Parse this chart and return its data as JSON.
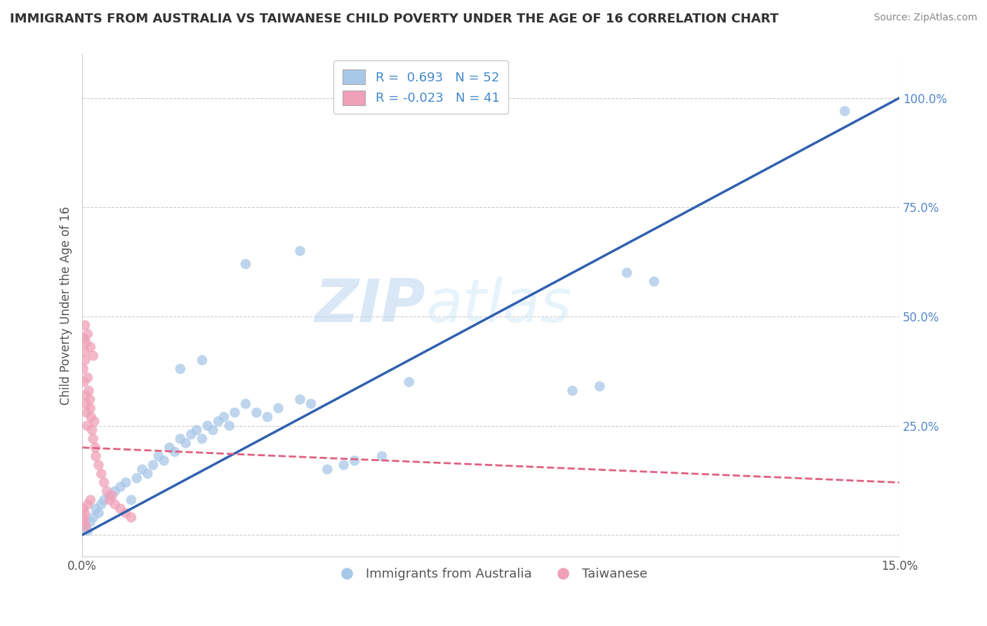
{
  "title": "IMMIGRANTS FROM AUSTRALIA VS TAIWANESE CHILD POVERTY UNDER THE AGE OF 16 CORRELATION CHART",
  "source": "Source: ZipAtlas.com",
  "ylabel": "Child Poverty Under the Age of 16",
  "y_ticks": [
    0.0,
    0.25,
    0.5,
    0.75,
    1.0
  ],
  "y_tick_labels": [
    "",
    "25.0%",
    "50.0%",
    "75.0%",
    "100.0%"
  ],
  "x_lim": [
    0.0,
    0.15
  ],
  "y_lim": [
    -0.05,
    1.1
  ],
  "r_blue": 0.693,
  "n_blue": 52,
  "r_pink": -0.023,
  "n_pink": 41,
  "legend_label_blue": "Immigrants from Australia",
  "legend_label_pink": "Taiwanese",
  "watermark_part1": "ZIP",
  "watermark_part2": "atlas",
  "blue_color": "#a8c8e8",
  "blue_line_color": "#3060b0",
  "pink_color": "#f0a0b8",
  "pink_line_color": "#e06080",
  "blue_scatter": [
    [
      0.0005,
      0.02
    ],
    [
      0.001,
      0.01
    ],
    [
      0.0015,
      0.03
    ],
    [
      0.002,
      0.04
    ],
    [
      0.0025,
      0.06
    ],
    [
      0.003,
      0.05
    ],
    [
      0.0035,
      0.07
    ],
    [
      0.004,
      0.08
    ],
    [
      0.005,
      0.09
    ],
    [
      0.006,
      0.1
    ],
    [
      0.007,
      0.11
    ],
    [
      0.008,
      0.12
    ],
    [
      0.009,
      0.08
    ],
    [
      0.01,
      0.13
    ],
    [
      0.011,
      0.15
    ],
    [
      0.012,
      0.14
    ],
    [
      0.013,
      0.16
    ],
    [
      0.014,
      0.18
    ],
    [
      0.015,
      0.17
    ],
    [
      0.016,
      0.2
    ],
    [
      0.017,
      0.19
    ],
    [
      0.018,
      0.22
    ],
    [
      0.019,
      0.21
    ],
    [
      0.02,
      0.23
    ],
    [
      0.021,
      0.24
    ],
    [
      0.022,
      0.22
    ],
    [
      0.023,
      0.25
    ],
    [
      0.024,
      0.24
    ],
    [
      0.025,
      0.26
    ],
    [
      0.026,
      0.27
    ],
    [
      0.027,
      0.25
    ],
    [
      0.028,
      0.28
    ],
    [
      0.03,
      0.3
    ],
    [
      0.032,
      0.28
    ],
    [
      0.034,
      0.27
    ],
    [
      0.036,
      0.29
    ],
    [
      0.04,
      0.31
    ],
    [
      0.042,
      0.3
    ],
    [
      0.045,
      0.15
    ],
    [
      0.048,
      0.16
    ],
    [
      0.05,
      0.17
    ],
    [
      0.055,
      0.18
    ],
    [
      0.06,
      0.35
    ],
    [
      0.03,
      0.62
    ],
    [
      0.04,
      0.65
    ],
    [
      0.09,
      0.33
    ],
    [
      0.095,
      0.34
    ],
    [
      0.1,
      0.6
    ],
    [
      0.105,
      0.58
    ],
    [
      0.14,
      0.97
    ],
    [
      0.018,
      0.38
    ],
    [
      0.022,
      0.4
    ]
  ],
  "pink_scatter": [
    [
      0.0002,
      0.38
    ],
    [
      0.0003,
      0.35
    ],
    [
      0.0004,
      0.42
    ],
    [
      0.0005,
      0.4
    ],
    [
      0.0006,
      0.32
    ],
    [
      0.0007,
      0.3
    ],
    [
      0.0008,
      0.28
    ],
    [
      0.0009,
      0.25
    ],
    [
      0.001,
      0.36
    ],
    [
      0.0012,
      0.33
    ],
    [
      0.0014,
      0.31
    ],
    [
      0.0015,
      0.29
    ],
    [
      0.0016,
      0.27
    ],
    [
      0.0018,
      0.24
    ],
    [
      0.002,
      0.22
    ],
    [
      0.0022,
      0.26
    ],
    [
      0.0024,
      0.2
    ],
    [
      0.0025,
      0.18
    ],
    [
      0.003,
      0.16
    ],
    [
      0.0035,
      0.14
    ],
    [
      0.004,
      0.12
    ],
    [
      0.0045,
      0.1
    ],
    [
      0.005,
      0.08
    ],
    [
      0.0055,
      0.09
    ],
    [
      0.006,
      0.07
    ],
    [
      0.007,
      0.06
    ],
    [
      0.008,
      0.05
    ],
    [
      0.009,
      0.04
    ],
    [
      0.0003,
      0.45
    ],
    [
      0.0005,
      0.48
    ],
    [
      0.0007,
      0.44
    ],
    [
      0.001,
      0.46
    ],
    [
      0.0015,
      0.43
    ],
    [
      0.002,
      0.41
    ],
    [
      0.0002,
      0.06
    ],
    [
      0.0003,
      0.04
    ],
    [
      0.0004,
      0.03
    ],
    [
      0.0005,
      0.05
    ],
    [
      0.0006,
      0.02
    ],
    [
      0.001,
      0.07
    ],
    [
      0.0015,
      0.08
    ]
  ],
  "blue_trendline": [
    [
      0.0,
      0.0
    ],
    [
      0.15,
      1.0
    ]
  ],
  "pink_trendline": [
    [
      0.0,
      0.2
    ],
    [
      0.15,
      0.12
    ]
  ]
}
